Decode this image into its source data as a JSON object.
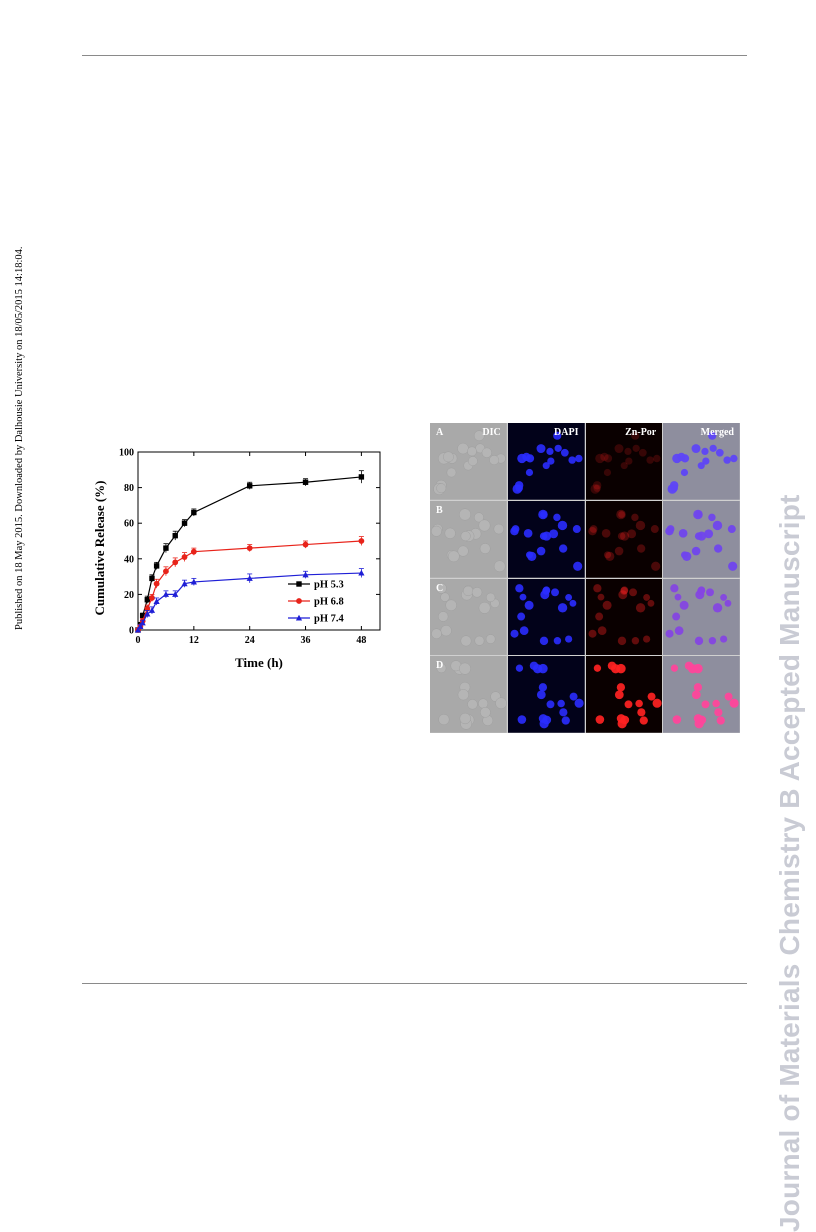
{
  "sidebar_note": "Published on 18 May 2015. Downloaded by Dalhousie University on 18/05/2015 14:18:04.",
  "watermark": "Journal of Materials Chemistry B Accepted Manuscript",
  "chart_data": {
    "type": "line",
    "xlabel": "Time (h)",
    "ylabel": "Cumulative Release (%)",
    "xlim": [
      0,
      52
    ],
    "ylim": [
      0,
      100
    ],
    "xticks": [
      "0",
      "12",
      "24",
      "36",
      "48"
    ],
    "yticks": [
      "0",
      "20",
      "40",
      "60",
      "80",
      "100"
    ],
    "legend_position": "bottom-right",
    "series": [
      {
        "name": "pH 5.3",
        "color": "#000000",
        "marker": "square",
        "x": [
          0,
          0.5,
          1,
          2,
          3,
          4,
          6,
          8,
          10,
          12,
          24,
          36,
          48
        ],
        "y": [
          0,
          3,
          8,
          17,
          29,
          36,
          46,
          53,
          60,
          66,
          81,
          83,
          86
        ],
        "err": [
          0,
          1,
          1.5,
          2,
          2,
          2,
          2.5,
          2.5,
          2,
          2,
          2,
          2,
          3.5
        ]
      },
      {
        "name": "pH 6.8",
        "color": "#e8231a",
        "marker": "circle",
        "x": [
          0,
          0.5,
          1,
          2,
          3,
          4,
          6,
          8,
          10,
          12,
          24,
          36,
          48
        ],
        "y": [
          0,
          2,
          5,
          12,
          18,
          26,
          33,
          38,
          41,
          44,
          46,
          48,
          50
        ],
        "err": [
          0,
          1,
          1.5,
          2,
          2,
          2.5,
          2.5,
          2.5,
          2.5,
          2,
          2,
          2,
          2.5
        ]
      },
      {
        "name": "pH 7.4",
        "color": "#1f1fd6",
        "marker": "triangle",
        "x": [
          0,
          0.5,
          1,
          2,
          3,
          4,
          6,
          8,
          10,
          12,
          24,
          36,
          48
        ],
        "y": [
          0,
          2,
          4,
          9,
          11,
          16,
          20,
          20,
          26,
          27,
          29,
          31,
          32
        ],
        "err": [
          0,
          1,
          1.5,
          2,
          2,
          2,
          2,
          2,
          2,
          2,
          2.5,
          2,
          2.5
        ]
      }
    ]
  },
  "micrograph": {
    "columns": [
      "DIC",
      "DAPI",
      "Zn-Por",
      "Merged"
    ],
    "rows": [
      "A",
      "B",
      "C",
      "D"
    ],
    "zn_por_intensity": [
      0.08,
      0.18,
      0.3,
      1.0
    ]
  }
}
